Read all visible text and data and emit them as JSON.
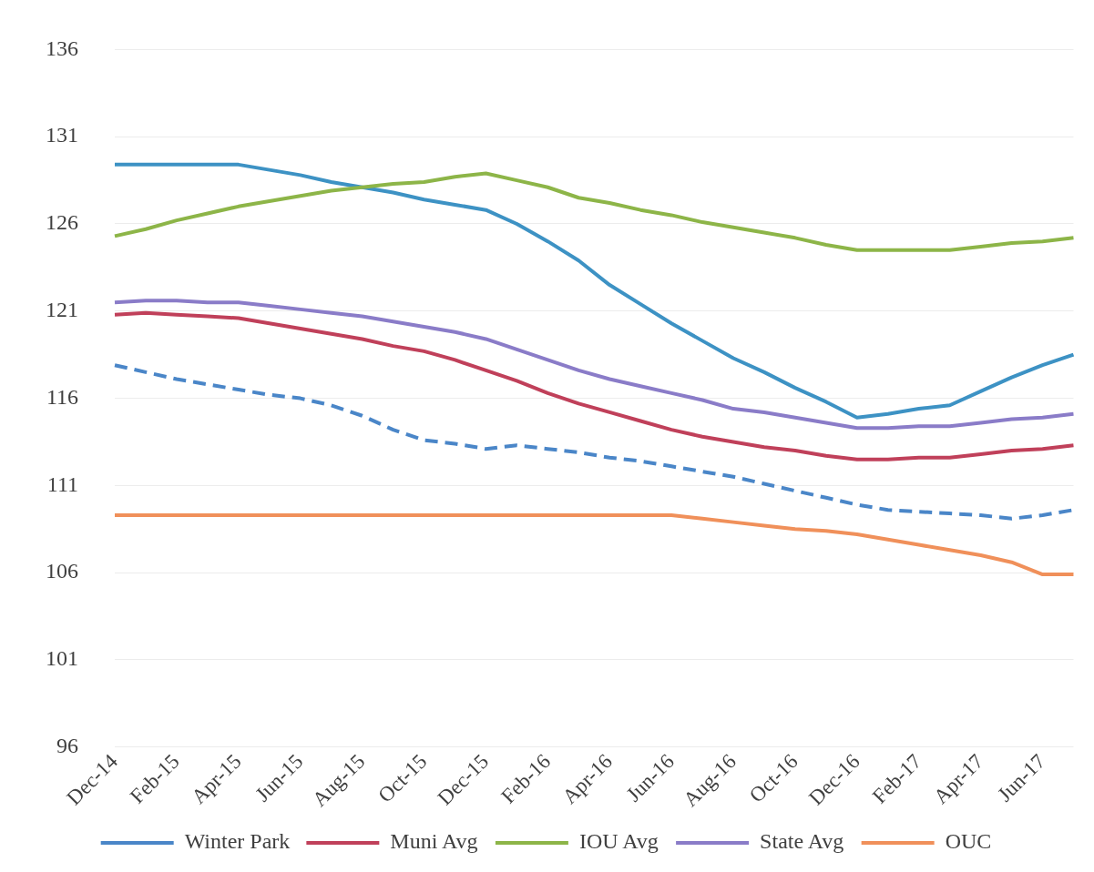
{
  "chart_data": {
    "type": "line",
    "categories": [
      "Dec-14",
      null,
      "Feb-15",
      null,
      "Apr-15",
      null,
      "Jun-15",
      null,
      "Aug-15",
      null,
      "Oct-15",
      null,
      "Dec-15",
      null,
      "Feb-16",
      null,
      "Apr-16",
      null,
      "Jun-16",
      null,
      "Aug-16",
      null,
      "Oct-16",
      null,
      "Dec-16",
      null,
      "Feb-17",
      null,
      "Apr-17",
      null,
      "Jun-17",
      null
    ],
    "series": [
      {
        "name": "Winter Park",
        "color": "#4a86c8",
        "line_style": "dashed",
        "values": [
          117.9,
          117.5,
          117.1,
          116.8,
          116.5,
          116.2,
          116.0,
          115.6,
          115.0,
          114.2,
          113.6,
          113.4,
          113.1,
          113.3,
          113.1,
          112.9,
          112.6,
          112.4,
          112.1,
          111.8,
          111.5,
          111.1,
          110.7,
          110.3,
          109.9,
          109.6,
          109.5,
          109.4,
          109.3,
          109.1,
          109.3,
          109.6
        ]
      },
      {
        "name": "Muni Avg",
        "color": "#c0405a",
        "line_style": "solid",
        "values": [
          120.8,
          120.9,
          120.8,
          120.7,
          120.6,
          120.3,
          120.0,
          119.7,
          119.4,
          119.0,
          118.7,
          118.2,
          117.6,
          117.0,
          116.3,
          115.7,
          115.2,
          114.7,
          114.2,
          113.8,
          113.5,
          113.2,
          113.0,
          112.7,
          112.5,
          112.5,
          112.6,
          112.6,
          112.8,
          113.0,
          113.1,
          113.3
        ]
      },
      {
        "name": "IOU Avg",
        "color": "#8db548",
        "line_style": "solid",
        "values": [
          125.3,
          125.7,
          126.2,
          126.6,
          127.0,
          127.3,
          127.6,
          127.9,
          128.1,
          128.3,
          128.4,
          128.7,
          128.9,
          128.5,
          128.1,
          127.5,
          127.2,
          126.8,
          126.5,
          126.1,
          125.8,
          125.5,
          125.2,
          124.8,
          124.5,
          124.5,
          124.5,
          124.5,
          124.7,
          124.9,
          125.0,
          125.2
        ]
      },
      {
        "name": "State Avg",
        "color": "#8a7cc8",
        "line_style": "solid",
        "values": [
          121.5,
          121.6,
          121.6,
          121.5,
          121.5,
          121.3,
          121.1,
          120.9,
          120.7,
          120.4,
          120.1,
          119.8,
          119.4,
          118.8,
          118.2,
          117.6,
          117.1,
          116.7,
          116.3,
          115.9,
          115.4,
          115.2,
          114.9,
          114.6,
          114.3,
          114.3,
          114.4,
          114.4,
          114.6,
          114.8,
          114.9,
          115.1
        ]
      },
      {
        "color": "#3d92c4",
        "line_style": "solid",
        "values": [
          129.4,
          129.4,
          129.4,
          129.4,
          129.4,
          129.1,
          128.8,
          128.4,
          128.1,
          127.8,
          127.4,
          127.1,
          126.8,
          126.0,
          125.0,
          123.9,
          122.5,
          121.4,
          120.3,
          119.3,
          118.3,
          117.5,
          116.6,
          115.8,
          114.9,
          115.1,
          115.4,
          115.6,
          116.4,
          117.2,
          117.9,
          118.5
        ]
      },
      {
        "name": "OUC",
        "color": "#f0905a",
        "line_style": "solid",
        "values": [
          109.3,
          109.3,
          109.3,
          109.3,
          109.3,
          109.3,
          109.3,
          109.3,
          109.3,
          109.3,
          109.3,
          109.3,
          109.3,
          109.3,
          109.3,
          109.3,
          109.3,
          109.3,
          109.3,
          109.1,
          108.9,
          108.7,
          108.5,
          108.4,
          108.2,
          107.9,
          107.6,
          107.3,
          107.0,
          106.6,
          105.9,
          105.9
        ]
      }
    ],
    "ylim": [
      96,
      136
    ],
    "yticks": [
      96,
      101,
      106,
      111,
      116,
      121,
      126,
      131,
      136
    ],
    "grid": "y",
    "legend": "bottom"
  }
}
